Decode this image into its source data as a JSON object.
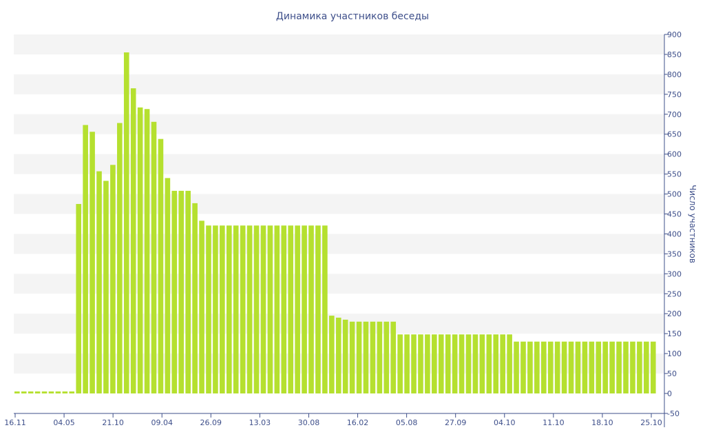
{
  "chart_data": {
    "type": "bar",
    "title": "Динамика участников беседы",
    "ylabel": "Число участников",
    "xlabel": "",
    "ylim": [
      -50,
      900
    ],
    "yticks": [
      -50,
      0,
      50,
      100,
      150,
      200,
      250,
      300,
      350,
      400,
      450,
      500,
      550,
      600,
      650,
      700,
      750,
      800,
      850,
      900
    ],
    "y_axis_side": "right",
    "grid": "alternating horizontal bands",
    "x_tick_labels": [
      "16.11",
      "04.05",
      "21.10",
      "09.04",
      "26.09",
      "13.03",
      "30.08",
      "16.02",
      "05.08",
      "27.09",
      "04.10",
      "11.10",
      "18.10",
      "25.10"
    ],
    "values": [
      5,
      5,
      5,
      5,
      5,
      5,
      5,
      5,
      5,
      475,
      673,
      656,
      557,
      533,
      573,
      678,
      855,
      765,
      717,
      713,
      681,
      638,
      540,
      508,
      508,
      508,
      477,
      433,
      421,
      421,
      421,
      421,
      421,
      421,
      421,
      421,
      421,
      421,
      421,
      421,
      421,
      421,
      421,
      421,
      421,
      421,
      195,
      190,
      185,
      180,
      180,
      180,
      180,
      180,
      180,
      180,
      148,
      148,
      148,
      148,
      148,
      148,
      148,
      148,
      148,
      148,
      148,
      148,
      148,
      148,
      148,
      148,
      148,
      130,
      130,
      130,
      130,
      130,
      130,
      130,
      130,
      130,
      130,
      130,
      130,
      130,
      130,
      130,
      130,
      130,
      130,
      130,
      130,
      130
    ],
    "bar_color": "#b5e02f",
    "axis_color": "#3e4f8a",
    "band_color": "#f4f4f4"
  }
}
